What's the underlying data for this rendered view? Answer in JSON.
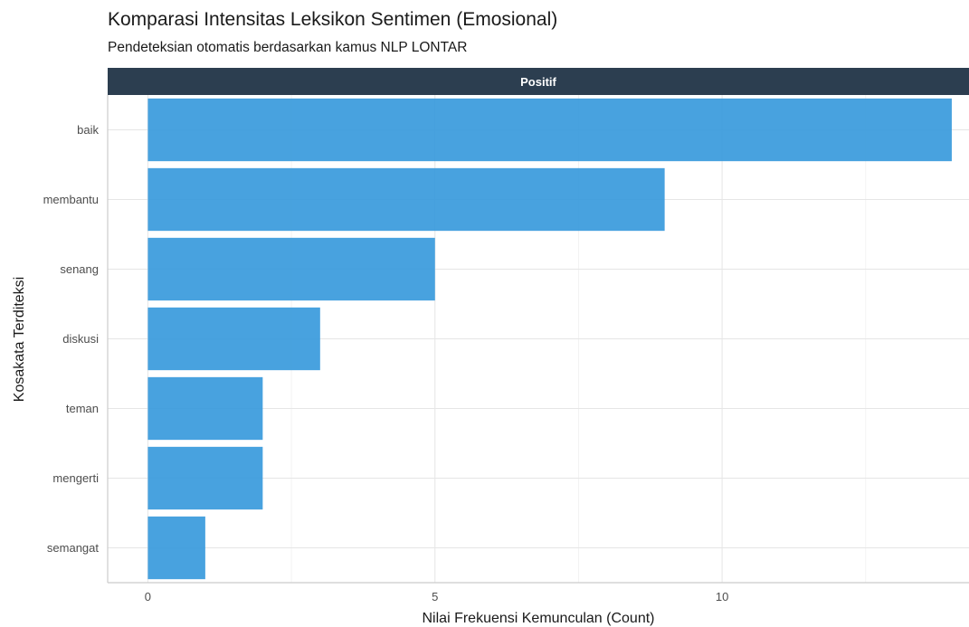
{
  "chart_data": {
    "type": "bar",
    "orientation": "horizontal",
    "title": "Komparasi Intensitas Leksikon Sentimen (Emosional)",
    "subtitle": "Pendeteksian otomatis berdasarkan kamus NLP LONTAR",
    "facet": "Positif",
    "xlabel": "Nilai Frekuensi Kemunculan (Count)",
    "ylabel": "Kosakata Terditeksi",
    "categories": [
      "baik",
      "membantu",
      "senang",
      "diskusi",
      "teman",
      "mengerti",
      "semangat"
    ],
    "values": [
      14,
      9,
      5,
      3,
      2,
      2,
      1
    ],
    "xlim": [
      -0.7,
      14.3
    ],
    "xticks": [
      0,
      5,
      10
    ],
    "grid": true,
    "legend": "none",
    "colors": {
      "bar": "#3498db",
      "strip_bg": "#2c3e50",
      "grid_major": "#e6e6e6",
      "grid_minor": "#f2f2f2",
      "axis_line": "#cccccc"
    }
  }
}
